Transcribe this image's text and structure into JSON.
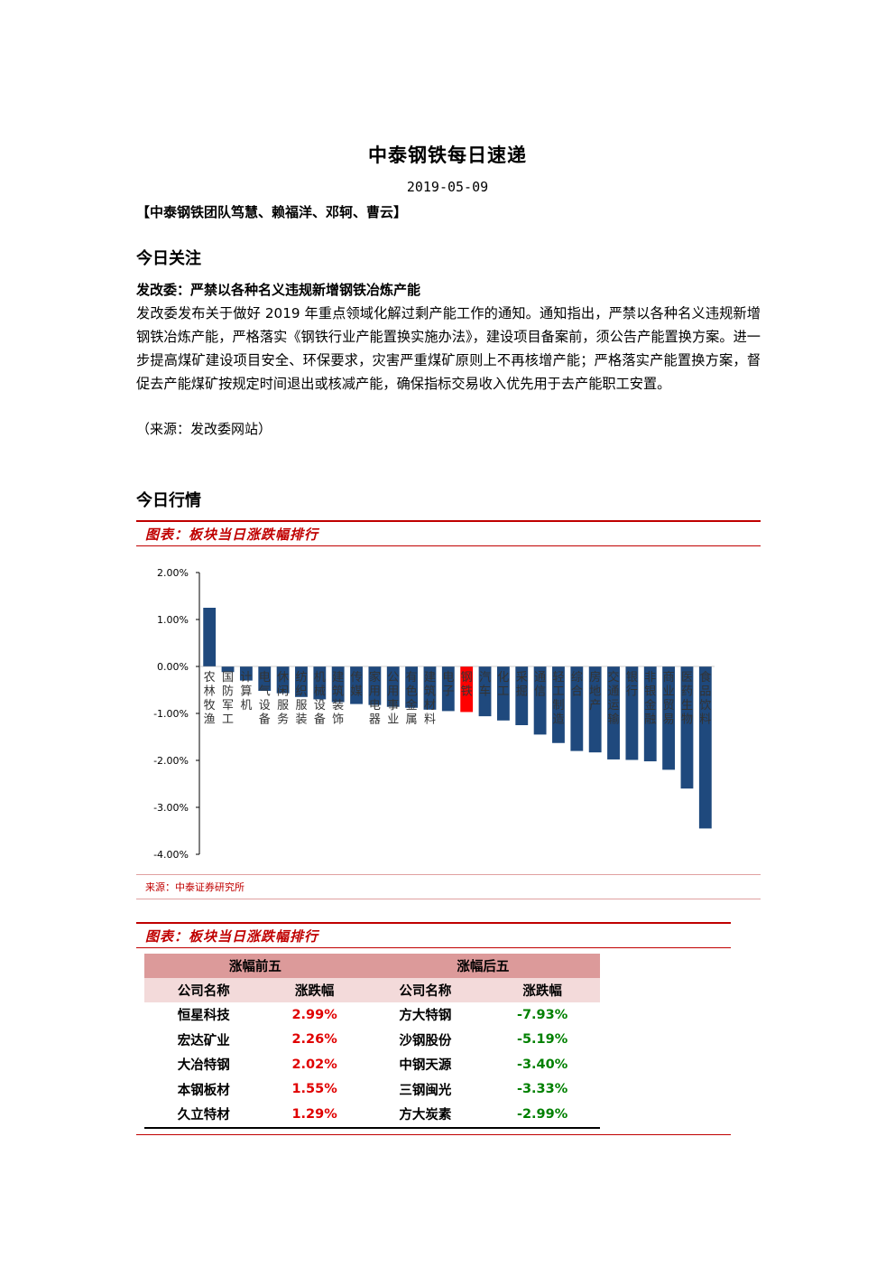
{
  "header": {
    "title": "中泰钢铁每日速递",
    "date": "2019-05-09",
    "team": "【中泰钢铁团队笃慧、赖福洋、邓轲、曹云】"
  },
  "focus": {
    "heading": "今日关注",
    "news_title": "发改委：严禁以各种名义违规新增钢铁冶炼产能",
    "news_body": "发改委发布关于做好 2019 年重点领域化解过剩产能工作的通知。通知指出，严禁以各种名义违规新增钢铁冶炼产能，严格落实《钢铁行业产能置换实施办法》，建设项目备案前，须公告产能置换方案。进一步提高煤矿建设项目安全、环保要求，灾害严重煤矿原则上不再核增产能；严格落实产能置换方案，督促去产能煤矿按规定时间退出或核减产能，确保指标交易收入优先用于去产能职工安置。",
    "news_source": "（来源：发改委网站）"
  },
  "market": {
    "heading": "今日行情",
    "figure1_caption": "图表：板块当日涨跌幅排行",
    "figure1_source": "来源：中泰证券研究所",
    "figure2_caption": "图表：板块当日涨跌幅排行"
  },
  "colors": {
    "bar": "#1f497d",
    "highlight": "#ff0000",
    "accent": "#c00000",
    "up": "#e00000",
    "down": "#008000"
  },
  "chart_data": {
    "type": "bar",
    "categories": [
      "农林牧渔",
      "国防军工",
      "计算机",
      "电气设备",
      "休闲服务",
      "纺织服装",
      "机械设备",
      "建筑装饰",
      "传媒",
      "家用电器",
      "公用事业",
      "有色金属",
      "建筑材料",
      "电子",
      "钢铁",
      "汽车",
      "化工",
      "采掘",
      "通信",
      "轻工制造",
      "综合",
      "房地产",
      "交通运输",
      "银行",
      "非银金融",
      "商业贸易",
      "医药生物",
      "食品饮料"
    ],
    "values": [
      1.25,
      -0.12,
      -0.3,
      -0.52,
      -0.57,
      -0.65,
      -0.7,
      -0.76,
      -0.8,
      -0.82,
      -0.86,
      -0.88,
      -0.92,
      -0.95,
      -0.97,
      -1.06,
      -1.15,
      -1.25,
      -1.45,
      -1.63,
      -1.8,
      -1.83,
      -1.98,
      -1.99,
      -2.02,
      -2.2,
      -2.6,
      -3.45
    ],
    "highlight": "钢铁",
    "ylim": [
      -4,
      2
    ],
    "yticks": [
      "2.00%",
      "1.00%",
      "0.00%",
      "-1.00%",
      "-2.00%",
      "-3.00%",
      "-4.00%"
    ]
  },
  "table": {
    "top_header": "涨幅前五",
    "bottom_header": "涨幅后五",
    "col_company": "公司名称",
    "col_change": "涨跌幅",
    "top": [
      {
        "name": "恒星科技",
        "change": "2.99%"
      },
      {
        "name": "宏达矿业",
        "change": "2.26%"
      },
      {
        "name": "大冶特钢",
        "change": "2.02%"
      },
      {
        "name": "本钢板材",
        "change": "1.55%"
      },
      {
        "name": "久立特材",
        "change": "1.29%"
      }
    ],
    "bottom": [
      {
        "name": "方大特钢",
        "change": "-7.93%"
      },
      {
        "name": "沙钢股份",
        "change": "-5.19%"
      },
      {
        "name": "中钢天源",
        "change": "-3.40%"
      },
      {
        "name": "三钢闽光",
        "change": "-3.33%"
      },
      {
        "name": "方大炭素",
        "change": "-2.99%"
      }
    ]
  }
}
